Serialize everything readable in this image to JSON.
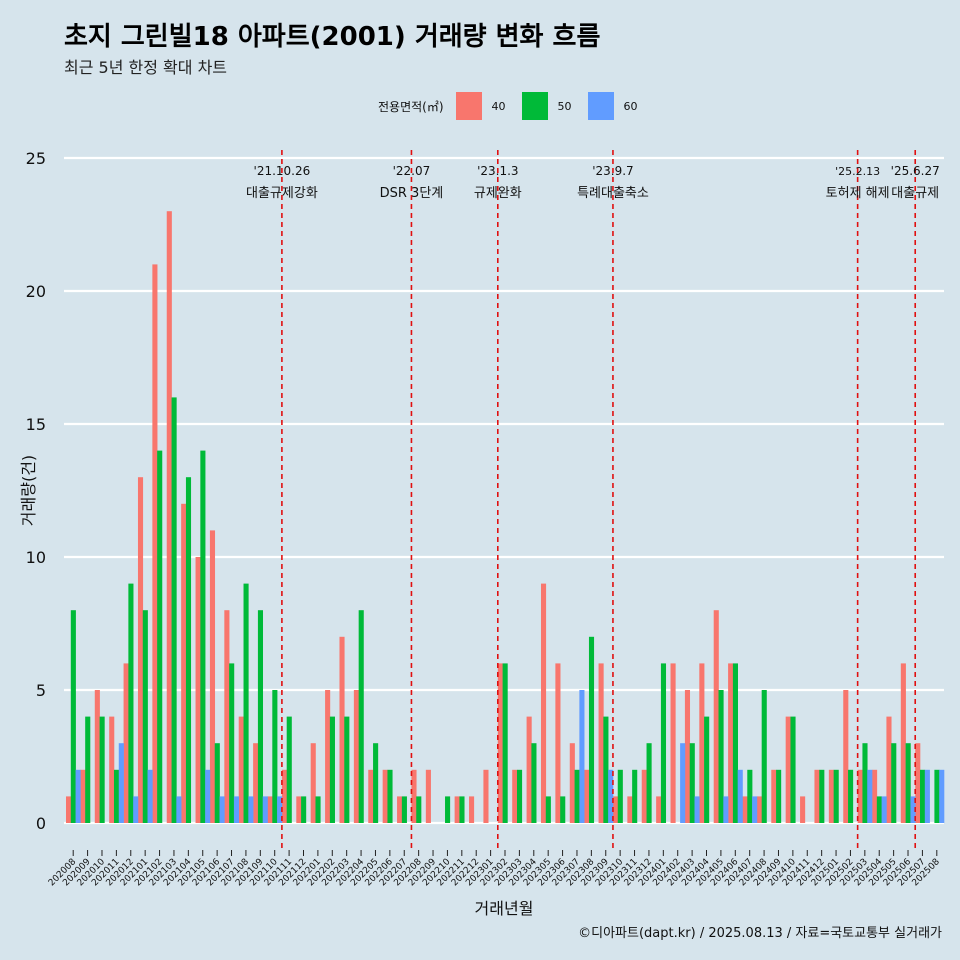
{
  "title": "초지 그린빌18 아파트(2001) 거래량 변화 흐름",
  "subtitle": "최근 5년 한정 확대 차트",
  "caption": "©디아파트(dapt.kr) / 2025.08.13 / 자료=국토교통부 실거래가",
  "legend": {
    "title": "전용면적(㎡)",
    "items": [
      {
        "label": "40",
        "color": "#f8766d"
      },
      {
        "label": "50",
        "color": "#00ba38"
      },
      {
        "label": "60",
        "color": "#619cff"
      }
    ]
  },
  "chart_data": {
    "type": "bar",
    "xlabel": "거래년월",
    "ylabel": "거래량(건)",
    "ylim": [
      0,
      25
    ],
    "yticks": [
      0,
      5,
      10,
      15,
      20,
      25
    ],
    "categories": [
      "202008",
      "202009",
      "202010",
      "202011",
      "202012",
      "202101",
      "202102",
      "202103",
      "202104",
      "202105",
      "202106",
      "202107",
      "202108",
      "202109",
      "202110",
      "202111",
      "202112",
      "202201",
      "202202",
      "202203",
      "202204",
      "202205",
      "202206",
      "202207",
      "202208",
      "202209",
      "202210",
      "202211",
      "202212",
      "202301",
      "202302",
      "202303",
      "202304",
      "202305",
      "202306",
      "202307",
      "202308",
      "202309",
      "202310",
      "202311",
      "202312",
      "202401",
      "202402",
      "202403",
      "202404",
      "202405",
      "202406",
      "202407",
      "202408",
      "202409",
      "202410",
      "202411",
      "202412",
      "202501",
      "202502",
      "202503",
      "202504",
      "202505",
      "202506",
      "202507",
      "202508"
    ],
    "series": [
      {
        "name": "40",
        "values": [
          1,
          2,
          5,
          4,
          6,
          13,
          21,
          23,
          12,
          10,
          11,
          8,
          4,
          3,
          1,
          2,
          1,
          3,
          5,
          7,
          5,
          2,
          2,
          1,
          2,
          2,
          0,
          1,
          1,
          2,
          6,
          2,
          4,
          9,
          6,
          3,
          2,
          6,
          1,
          1,
          2,
          1,
          6,
          5,
          6,
          8,
          6,
          1,
          1,
          2,
          4,
          1,
          2,
          2,
          5,
          2,
          2,
          4,
          6,
          3,
          0
        ]
      },
      {
        "name": "50",
        "values": [
          8,
          4,
          4,
          2,
          9,
          8,
          14,
          16,
          13,
          14,
          3,
          6,
          9,
          8,
          5,
          4,
          1,
          1,
          4,
          4,
          8,
          3,
          2,
          1,
          1,
          0,
          1,
          1,
          0,
          0,
          6,
          2,
          3,
          1,
          1,
          2,
          7,
          4,
          2,
          2,
          3,
          6,
          0,
          3,
          4,
          5,
          6,
          2,
          5,
          2,
          4,
          0,
          2,
          2,
          2,
          3,
          1,
          3,
          3,
          2,
          2
        ]
      },
      {
        "name": "60",
        "values": [
          2,
          0,
          0,
          3,
          1,
          2,
          0,
          1,
          0,
          2,
          1,
          1,
          1,
          1,
          1,
          0,
          0,
          0,
          0,
          0,
          0,
          0,
          0,
          0,
          0,
          0,
          0,
          0,
          0,
          0,
          0,
          0,
          0,
          0,
          0,
          5,
          0,
          2,
          0,
          0,
          0,
          0,
          3,
          1,
          0,
          1,
          2,
          1,
          0,
          0,
          0,
          0,
          0,
          0,
          0,
          2,
          1,
          0,
          1,
          2,
          2
        ]
      }
    ],
    "events": [
      {
        "date": "'21.10.26",
        "label": "대출규제강화",
        "after": "202110"
      },
      {
        "date": "'22.07",
        "label": "DSR 3단계",
        "after": "202207"
      },
      {
        "date": "'23.1.3",
        "label": "규제완화",
        "after": "202301"
      },
      {
        "date": "'23.9.7",
        "label": "특례대출축소",
        "after": "202309"
      },
      {
        "date": "'25.2.13",
        "label": "토허제 해제",
        "after": "202502"
      },
      {
        "date": "'25.6.27",
        "label": "대출규제",
        "after": "202506"
      }
    ]
  }
}
